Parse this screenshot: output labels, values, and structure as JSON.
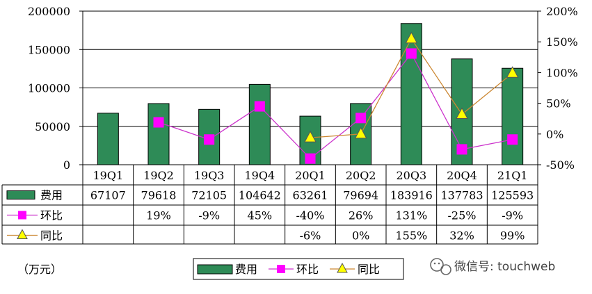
{
  "chart_data": {
    "type": "bar",
    "categories": [
      "19Q1",
      "19Q2",
      "19Q3",
      "19Q4",
      "20Q1",
      "20Q2",
      "20Q3",
      "20Q4",
      "21Q1"
    ],
    "series": [
      {
        "name": "费用",
        "type": "bar",
        "axis": "left",
        "values": [
          67107,
          79618,
          72105,
          104642,
          63261,
          79694,
          183916,
          137783,
          125593
        ],
        "color": "#2e8b57"
      },
      {
        "name": "环比",
        "type": "line",
        "axis": "right",
        "values": [
          null,
          0.19,
          -0.09,
          0.45,
          -0.4,
          0.26,
          1.31,
          -0.25,
          -0.09
        ],
        "color": "#cc33cc",
        "marker_color": "#ff00ff",
        "marker": "square"
      },
      {
        "name": "同比",
        "type": "line",
        "axis": "right",
        "values": [
          null,
          null,
          null,
          null,
          -0.06,
          0.0,
          1.55,
          0.32,
          0.99
        ],
        "color": "#cc8833",
        "marker_color": "#ffff00",
        "marker": "triangle"
      }
    ],
    "y_left_ticks": [
      "200000",
      "150000",
      "100000",
      "50000",
      "0"
    ],
    "y_left_range": [
      0,
      200000
    ],
    "y_right_ticks": [
      "200%",
      "150%",
      "100%",
      "50%",
      "0%",
      "-50%"
    ],
    "y_right_range": [
      -0.5,
      2.0
    ],
    "table": {
      "rows": [
        {
          "label": "费用",
          "cells": [
            "67107",
            "79618",
            "72105",
            "104642",
            "63261",
            "79694",
            "183916",
            "137783",
            "125593"
          ]
        },
        {
          "label": "环比",
          "cells": [
            "",
            "19%",
            "-9%",
            "45%",
            "-40%",
            "26%",
            "131%",
            "-25%",
            "-9%"
          ]
        },
        {
          "label": "同比",
          "cells": [
            "",
            "",
            "",
            "",
            "-6%",
            "0%",
            "155%",
            "32%",
            "99%"
          ]
        }
      ]
    },
    "unit_label": "（万元）",
    "legend": [
      "费用",
      "环比",
      "同比"
    ],
    "watermark": "微信号: touchweb",
    "grid": true
  }
}
